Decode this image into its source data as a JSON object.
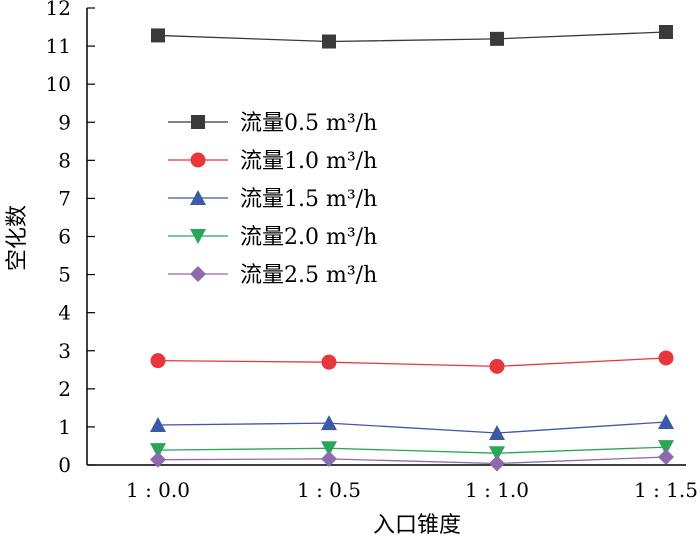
{
  "chart_data": {
    "type": "line",
    "xlabel": "入口锥度",
    "ylabel": "空化数",
    "categories": [
      "1 : 0.0",
      "1 : 0.5",
      "1 : 1.0",
      "1 : 1.5"
    ],
    "ylim": [
      0,
      12
    ],
    "yticks": [
      0,
      1,
      2,
      3,
      4,
      5,
      6,
      7,
      8,
      9,
      10,
      11,
      12
    ],
    "grid": false,
    "legend_position": "upper-left",
    "series": [
      {
        "name": "流量0.5 m³/h",
        "color": "#3a3a3a",
        "marker": "square",
        "values": [
          11.28,
          11.12,
          11.19,
          11.37
        ]
      },
      {
        "name": "流量1.0 m³/h",
        "color": "#e8373c",
        "marker": "circle",
        "values": [
          2.74,
          2.7,
          2.59,
          2.81
        ]
      },
      {
        "name": "流量1.5 m³/h",
        "color": "#3d5aa6",
        "marker": "triangle",
        "values": [
          1.05,
          1.1,
          0.84,
          1.13
        ]
      },
      {
        "name": "流量2.0 m³/h",
        "color": "#2aa55a",
        "marker": "triangle-down",
        "values": [
          0.39,
          0.44,
          0.31,
          0.47
        ]
      },
      {
        "name": "流量2.5 m³/h",
        "color": "#8d6aac",
        "marker": "diamond",
        "values": [
          0.14,
          0.16,
          0.04,
          0.21
        ]
      }
    ]
  }
}
